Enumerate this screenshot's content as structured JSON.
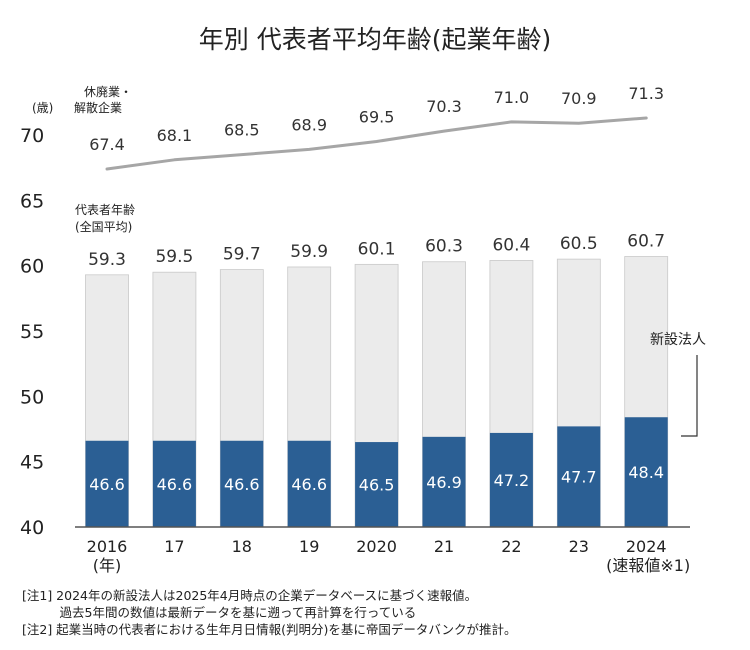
{
  "chart_data": {
    "type": "bar",
    "title": "年別 代表者平均年齢(起業年齢)",
    "y_unit": "(歳)",
    "ylim": [
      40,
      70
    ],
    "yticks": [
      "40",
      "45",
      "50",
      "55",
      "60",
      "65",
      "70"
    ],
    "categories": [
      "2016",
      "17",
      "18",
      "19",
      "2020",
      "21",
      "22",
      "23",
      "2024"
    ],
    "category_sublabels": [
      "(年)",
      "",
      "",
      "",
      "",
      "",
      "",
      "",
      "(速報値※1)"
    ],
    "series": [
      {
        "name": "代表者年齢(全国平均)",
        "name_lines": [
          "代表者年齢",
          "(全国平均)"
        ],
        "type": "bar",
        "color": "#ebebeb",
        "values": [
          59.3,
          59.5,
          59.7,
          59.9,
          60.1,
          60.3,
          60.4,
          60.5,
          60.7
        ],
        "labels": [
          "59.3",
          "59.5",
          "59.7",
          "59.9",
          "60.1",
          "60.3",
          "60.4",
          "60.5",
          "60.7"
        ]
      },
      {
        "name": "新設法人",
        "type": "bar",
        "color": "#2b5f94",
        "values": [
          46.6,
          46.6,
          46.6,
          46.6,
          46.5,
          46.9,
          47.2,
          47.7,
          48.4
        ],
        "labels": [
          "46.6",
          "46.6",
          "46.6",
          "46.6",
          "46.5",
          "46.9",
          "47.2",
          "47.7",
          "48.4"
        ]
      },
      {
        "name": "休廃業・解散企業",
        "name_lines": [
          "休廃業・",
          "解散企業"
        ],
        "type": "line",
        "color": "#a6a6a6",
        "values": [
          67.4,
          68.1,
          68.5,
          68.9,
          69.5,
          70.3,
          71.0,
          70.9,
          71.3
        ],
        "labels": [
          "67.4",
          "68.1",
          "68.5",
          "68.9",
          "69.5",
          "70.3",
          "71.0",
          "70.9",
          "71.3"
        ]
      }
    ]
  },
  "notes": [
    "[注1] 2024年の新設法人は2025年4月時点の企業データベースに基づく速報値。",
    "　　　過去5年間の数値は最新データを基に遡って再計算を行っている",
    "[注2] 起業当時の代表者における生年月日情報(判明分)を基に帝国データバンクが推計。"
  ]
}
